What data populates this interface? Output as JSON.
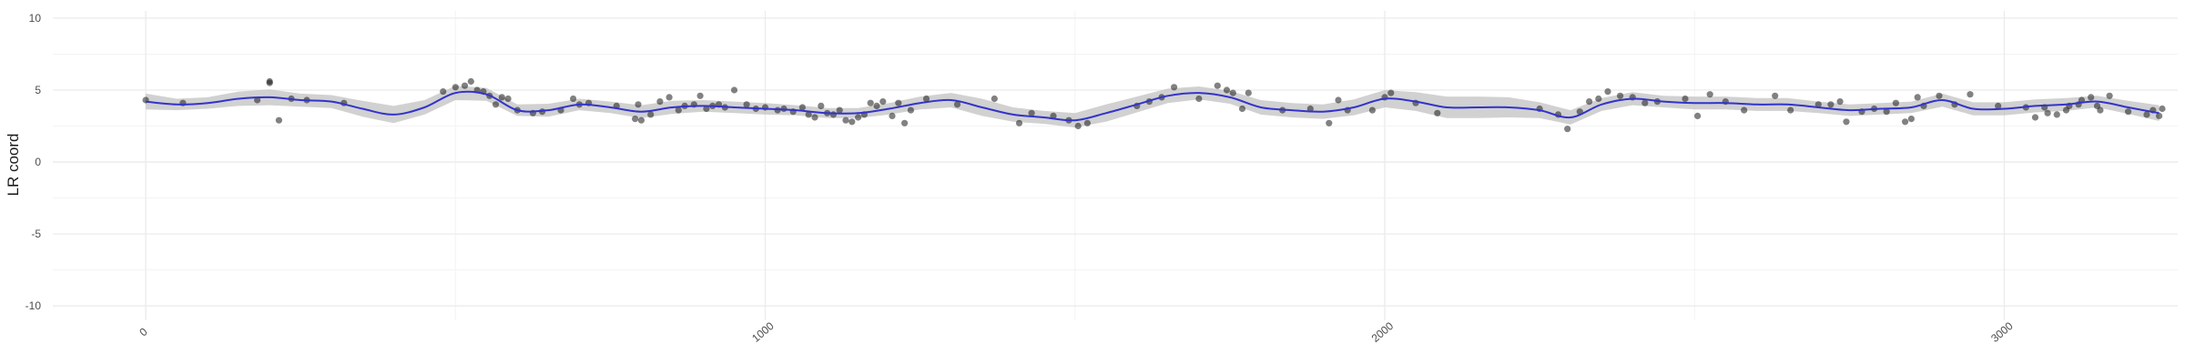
{
  "chart_data": {
    "type": "scatter",
    "title": "",
    "xlabel": "",
    "ylabel": "LR coord",
    "xlim": [
      -150,
      3280
    ],
    "ylim": [
      -11,
      10.5
    ],
    "x_ticks": [
      0,
      1000,
      2000,
      3000
    ],
    "x_tick_labels": [
      "0",
      "1000",
      "2000",
      "3000"
    ],
    "y_ticks": [
      -10,
      -5,
      0,
      5,
      10
    ],
    "y_tick_labels": [
      "-10",
      "-5",
      "0",
      "5",
      "10"
    ],
    "grid": true,
    "legend": "none",
    "colors": {
      "points": "#1a1a1a",
      "smooth_line": "#3333cc",
      "ribbon": "#bdbdbd",
      "grid": "#ebebeb"
    },
    "points": [
      [
        0,
        4.3
      ],
      [
        60,
        4.1
      ],
      [
        180,
        4.3
      ],
      [
        200,
        5.5
      ],
      [
        200,
        5.6
      ],
      [
        215,
        2.9
      ],
      [
        235,
        4.4
      ],
      [
        260,
        4.3
      ],
      [
        320,
        4.1
      ],
      [
        480,
        4.9
      ],
      [
        500,
        5.2
      ],
      [
        515,
        5.3
      ],
      [
        525,
        5.6
      ],
      [
        535,
        5.0
      ],
      [
        545,
        4.9
      ],
      [
        555,
        4.6
      ],
      [
        565,
        4.0
      ],
      [
        575,
        4.5
      ],
      [
        585,
        4.4
      ],
      [
        600,
        3.6
      ],
      [
        625,
        3.4
      ],
      [
        640,
        3.5
      ],
      [
        670,
        3.6
      ],
      [
        690,
        4.4
      ],
      [
        700,
        4.0
      ],
      [
        715,
        4.1
      ],
      [
        760,
        3.9
      ],
      [
        790,
        3.0
      ],
      [
        795,
        4.0
      ],
      [
        800,
        2.9
      ],
      [
        815,
        3.3
      ],
      [
        830,
        4.2
      ],
      [
        845,
        4.5
      ],
      [
        860,
        3.6
      ],
      [
        870,
        3.9
      ],
      [
        885,
        4.0
      ],
      [
        895,
        4.6
      ],
      [
        905,
        3.7
      ],
      [
        915,
        3.9
      ],
      [
        925,
        4.0
      ],
      [
        935,
        3.8
      ],
      [
        950,
        5.0
      ],
      [
        970,
        4.0
      ],
      [
        985,
        3.7
      ],
      [
        1000,
        3.8
      ],
      [
        1020,
        3.6
      ],
      [
        1030,
        3.7
      ],
      [
        1045,
        3.5
      ],
      [
        1060,
        3.8
      ],
      [
        1070,
        3.3
      ],
      [
        1080,
        3.1
      ],
      [
        1090,
        3.9
      ],
      [
        1100,
        3.4
      ],
      [
        1110,
        3.3
      ],
      [
        1120,
        3.6
      ],
      [
        1130,
        2.9
      ],
      [
        1140,
        2.8
      ],
      [
        1150,
        3.1
      ],
      [
        1160,
        3.3
      ],
      [
        1170,
        4.1
      ],
      [
        1180,
        3.9
      ],
      [
        1190,
        4.2
      ],
      [
        1205,
        3.2
      ],
      [
        1215,
        4.1
      ],
      [
        1225,
        2.7
      ],
      [
        1235,
        3.6
      ],
      [
        1260,
        4.4
      ],
      [
        1310,
        4.0
      ],
      [
        1370,
        4.4
      ],
      [
        1410,
        2.7
      ],
      [
        1430,
        3.4
      ],
      [
        1465,
        3.2
      ],
      [
        1490,
        2.9
      ],
      [
        1505,
        2.5
      ],
      [
        1520,
        2.7
      ],
      [
        1600,
        3.9
      ],
      [
        1620,
        4.2
      ],
      [
        1640,
        4.5
      ],
      [
        1660,
        5.2
      ],
      [
        1700,
        4.4
      ],
      [
        1730,
        5.3
      ],
      [
        1745,
        5.0
      ],
      [
        1755,
        4.8
      ],
      [
        1770,
        3.7
      ],
      [
        1780,
        4.8
      ],
      [
        1835,
        3.6
      ],
      [
        1880,
        3.7
      ],
      [
        1910,
        2.7
      ],
      [
        1925,
        4.3
      ],
      [
        1940,
        3.6
      ],
      [
        1980,
        3.6
      ],
      [
        2000,
        4.5
      ],
      [
        2010,
        4.8
      ],
      [
        2050,
        4.1
      ],
      [
        2085,
        3.4
      ],
      [
        2250,
        3.7
      ],
      [
        2280,
        3.3
      ],
      [
        2295,
        2.3
      ],
      [
        2315,
        3.5
      ],
      [
        2330,
        4.2
      ],
      [
        2345,
        4.4
      ],
      [
        2360,
        4.9
      ],
      [
        2380,
        4.6
      ],
      [
        2400,
        4.5
      ],
      [
        2420,
        4.1
      ],
      [
        2440,
        4.2
      ],
      [
        2485,
        4.4
      ],
      [
        2505,
        3.2
      ],
      [
        2525,
        4.7
      ],
      [
        2550,
        4.2
      ],
      [
        2580,
        3.6
      ],
      [
        2630,
        4.6
      ],
      [
        2655,
        3.6
      ],
      [
        2700,
        4.0
      ],
      [
        2720,
        4.0
      ],
      [
        2735,
        4.2
      ],
      [
        2745,
        2.8
      ],
      [
        2770,
        3.5
      ],
      [
        2790,
        3.7
      ],
      [
        2810,
        3.5
      ],
      [
        2825,
        4.1
      ],
      [
        2840,
        2.8
      ],
      [
        2850,
        3.0
      ],
      [
        2860,
        4.5
      ],
      [
        2870,
        3.9
      ],
      [
        2895,
        4.6
      ],
      [
        2920,
        4.0
      ],
      [
        2945,
        4.7
      ],
      [
        2990,
        3.9
      ],
      [
        3035,
        3.8
      ],
      [
        3050,
        3.1
      ],
      [
        3065,
        3.8
      ],
      [
        3070,
        3.4
      ],
      [
        3085,
        3.3
      ],
      [
        3100,
        3.6
      ],
      [
        3105,
        3.9
      ],
      [
        3120,
        4.0
      ],
      [
        3125,
        4.3
      ],
      [
        3140,
        4.5
      ],
      [
        3150,
        3.9
      ],
      [
        3155,
        3.6
      ],
      [
        3170,
        4.6
      ],
      [
        3200,
        3.5
      ],
      [
        3230,
        3.3
      ],
      [
        3240,
        3.6
      ],
      [
        3250,
        3.2
      ],
      [
        3255,
        3.7
      ]
    ],
    "smooth": {
      "x": [
        0,
        50,
        100,
        150,
        200,
        250,
        300,
        350,
        400,
        450,
        500,
        550,
        600,
        650,
        700,
        750,
        800,
        850,
        900,
        950,
        1000,
        1050,
        1100,
        1150,
        1200,
        1250,
        1300,
        1350,
        1400,
        1450,
        1500,
        1550,
        1600,
        1650,
        1700,
        1750,
        1800,
        1850,
        1900,
        1950,
        2000,
        2050,
        2100,
        2150,
        2200,
        2250,
        2300,
        2350,
        2400,
        2450,
        2500,
        2550,
        2600,
        2650,
        2700,
        2750,
        2800,
        2850,
        2900,
        2950,
        3000,
        3050,
        3100,
        3150,
        3200,
        3250
      ],
      "y": [
        4.2,
        4.0,
        4.1,
        4.4,
        4.5,
        4.3,
        4.2,
        3.7,
        3.3,
        3.8,
        4.8,
        4.7,
        3.6,
        3.6,
        4.0,
        3.8,
        3.5,
        3.8,
        3.9,
        3.8,
        3.7,
        3.6,
        3.4,
        3.4,
        3.7,
        4.1,
        4.3,
        3.8,
        3.3,
        3.1,
        2.9,
        3.4,
        4.0,
        4.6,
        4.8,
        4.5,
        3.8,
        3.6,
        3.5,
        3.8,
        4.4,
        4.2,
        3.8,
        3.8,
        3.8,
        3.6,
        3.1,
        4.0,
        4.4,
        4.2,
        4.1,
        4.1,
        4.0,
        4.0,
        3.8,
        3.6,
        3.7,
        3.8,
        4.3,
        3.7,
        3.7,
        3.9,
        4.0,
        4.2,
        3.8,
        3.4
      ],
      "se": [
        0.55,
        0.4,
        0.4,
        0.5,
        0.55,
        0.45,
        0.45,
        0.55,
        0.6,
        0.5,
        0.5,
        0.45,
        0.4,
        0.45,
        0.4,
        0.4,
        0.45,
        0.45,
        0.4,
        0.4,
        0.4,
        0.35,
        0.35,
        0.35,
        0.4,
        0.45,
        0.5,
        0.6,
        0.5,
        0.45,
        0.5,
        0.6,
        0.55,
        0.5,
        0.45,
        0.45,
        0.5,
        0.5,
        0.5,
        0.55,
        0.6,
        0.65,
        0.75,
        0.75,
        0.7,
        0.55,
        0.5,
        0.45,
        0.45,
        0.4,
        0.45,
        0.45,
        0.45,
        0.45,
        0.4,
        0.4,
        0.4,
        0.4,
        0.45,
        0.45,
        0.45,
        0.45,
        0.45,
        0.4,
        0.45,
        0.55
      ]
    }
  }
}
